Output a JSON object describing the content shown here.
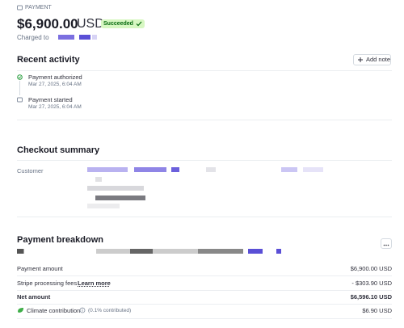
{
  "header": {
    "label": "PAYMENT",
    "amount": "$6,900.00",
    "currency": "USD",
    "status": "Succeeded",
    "charged_to": "Charged to"
  },
  "recent_activity": {
    "title": "Recent activity",
    "button": "Add note",
    "events": [
      {
        "title": "Payment authorized",
        "time": "Mar 27, 2025, 6:04 AM"
      },
      {
        "title": "Payment started",
        "time": "Mar 27, 2025, 6:04 AM"
      }
    ]
  },
  "checkout_summary": {
    "title": "Checkout summary",
    "customer_label": "Customer"
  },
  "payment_breakdown": {
    "title": "Payment breakdown",
    "rows": [
      {
        "label": "Payment amount",
        "value": "$6,900.00 USD"
      },
      {
        "label": "Stripe processing fees",
        "link": "Learn more",
        "value": "- $303.90 USD"
      },
      {
        "label": "Net amount",
        "value": "$6,596.10 USD"
      },
      {
        "label": "Climate contribution",
        "note": "(0.1% contributed)",
        "value": "$6.90 USD"
      }
    ]
  }
}
